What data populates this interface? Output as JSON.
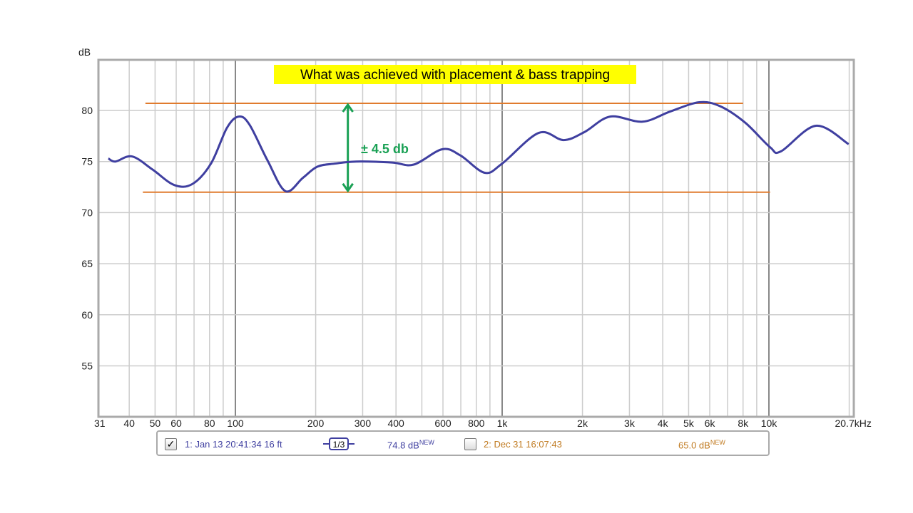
{
  "chart_data": {
    "type": "line",
    "title": "What was achieved with placement & bass trapping",
    "ylabel": "dB",
    "xlabel": "",
    "x_scale": "log",
    "xlim": [
      31,
      20700
    ],
    "ylim": [
      50,
      85
    ],
    "grid": true,
    "x_tick_labels": [
      "31",
      "40",
      "50",
      "60",
      "80",
      "100",
      "200",
      "300",
      "400",
      "600",
      "800",
      "1k",
      "2k",
      "3k",
      "4k",
      "5k",
      "6k",
      "8k",
      "10k",
      "20.7kHz"
    ],
    "x_tick_values": [
      31,
      40,
      50,
      60,
      80,
      100,
      200,
      300,
      400,
      600,
      800,
      1000,
      2000,
      3000,
      4000,
      5000,
      6000,
      8000,
      10000,
      20700
    ],
    "y_tick_labels": [
      "55",
      "60",
      "65",
      "70",
      "75",
      "80"
    ],
    "y_tick_values": [
      55,
      60,
      65,
      70,
      75,
      80
    ],
    "series": [
      {
        "name": "1: Jan 13 20:41:34 16 ft",
        "color": "#3f3fa0",
        "x": [
          33.4,
          35.5,
          41,
          49,
          59,
          69,
          81,
          93,
          103,
          113,
          132,
          154,
          179,
          203,
          237,
          284,
          387,
          466,
          596,
          697,
          860,
          1000,
          1370,
          1700,
          2040,
          2540,
          3360,
          4270,
          5480,
          6580,
          8150,
          10100,
          11100,
          15000,
          19900
        ],
        "y": [
          75.3,
          75.0,
          75.5,
          74.2,
          72.7,
          72.8,
          74.8,
          78.3,
          79.4,
          78.6,
          75.1,
          72.1,
          73.4,
          74.5,
          74.8,
          75.0,
          74.9,
          74.7,
          76.2,
          75.6,
          73.9,
          74.8,
          77.8,
          77.1,
          77.9,
          79.4,
          78.9,
          79.9,
          80.8,
          80.4,
          78.8,
          76.4,
          76.0,
          78.5,
          76.7
        ]
      }
    ],
    "annotations": {
      "upper_line": {
        "y": 80.7,
        "x_from": 46,
        "x_to": 8000,
        "color": "#e07b2e"
      },
      "lower_line": {
        "y": 72.0,
        "x_from": 45,
        "x_to": 10100,
        "color": "#e07b2e"
      },
      "range_arrow": {
        "x": 264,
        "y_from": 72.0,
        "y_to": 80.7,
        "color": "#1aa155",
        "label": "± 4.5 db"
      },
      "title_highlight": "#ffff00"
    }
  },
  "legend": {
    "item1": {
      "checked": true,
      "label": "1: Jan 13 20:41:34 16 ft",
      "smoothing": "1/3",
      "level": "74.8 dB",
      "badge": "NEW",
      "color": "#3f3fa0"
    },
    "item2": {
      "checked": false,
      "label": "2: Dec 31 16:07:43",
      "level": "65.0 dB",
      "badge": "NEW",
      "color": "#c07a20"
    }
  }
}
